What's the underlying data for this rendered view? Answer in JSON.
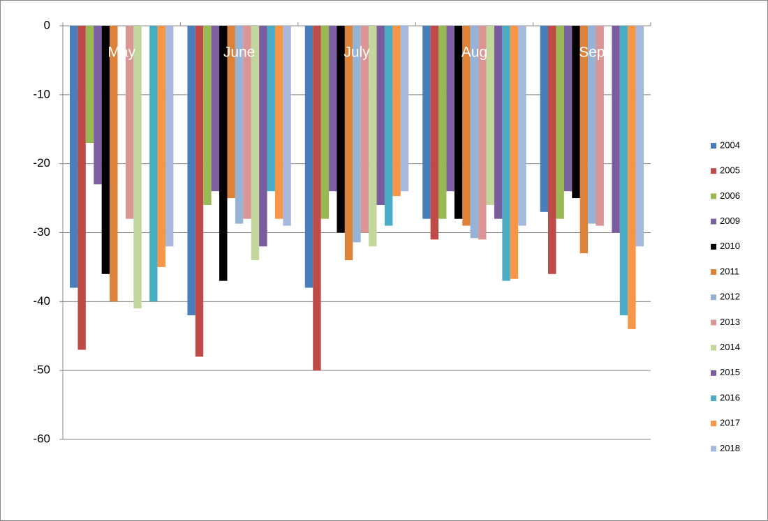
{
  "chart_data": {
    "type": "bar",
    "categories": [
      "May",
      "June",
      "July",
      "Aug",
      "Sep"
    ],
    "series": [
      {
        "name": "2004",
        "color": "#4a7ebb",
        "values": [
          -38,
          -42,
          -38,
          -28,
          -27
        ]
      },
      {
        "name": "2005",
        "color": "#be4b48",
        "values": [
          -47,
          -48,
          -50,
          -31,
          -36
        ]
      },
      {
        "name": "2006",
        "color": "#98b954",
        "values": [
          -17,
          -26,
          -28,
          -28,
          -28
        ]
      },
      {
        "name": "2009",
        "color": "#7d60a0",
        "values": [
          -23,
          -24,
          -24,
          -24,
          -24
        ]
      },
      {
        "name": "2010",
        "color": "#000000",
        "values": [
          -36,
          -37,
          -30,
          -28,
          -25
        ]
      },
      {
        "name": "2011",
        "color": "#dd8339",
        "values": [
          -40,
          -25,
          -34,
          -29,
          -33
        ]
      },
      {
        "name": "2012",
        "color": "#95b3d7",
        "values": [
          null,
          -28.7,
          -31.4,
          -30.8,
          -28.7
        ]
      },
      {
        "name": "2013",
        "color": "#d99694",
        "values": [
          -28,
          -28,
          -30,
          -31,
          -29
        ]
      },
      {
        "name": "2014",
        "color": "#c3d69b",
        "values": [
          -41,
          -34,
          -32,
          -26,
          null
        ]
      },
      {
        "name": "2015",
        "color": "#7a5c9e",
        "values": [
          null,
          -32,
          -26,
          -28,
          -30
        ]
      },
      {
        "name": "2016",
        "color": "#4bacc6",
        "values": [
          -40,
          -24,
          -29,
          -37,
          -42
        ]
      },
      {
        "name": "2017",
        "color": "#f79646",
        "values": [
          -35,
          -28,
          -24.7,
          -36.7,
          -44
        ]
      },
      {
        "name": "2018",
        "color": "#a6b8dd",
        "values": [
          -32,
          -29,
          -24,
          -29,
          -32
        ]
      }
    ],
    "ylim": [
      -60,
      0
    ],
    "yticks": [
      0,
      -10,
      -20,
      -30,
      -40,
      -50,
      -60
    ],
    "grid": true,
    "legend": "right"
  }
}
